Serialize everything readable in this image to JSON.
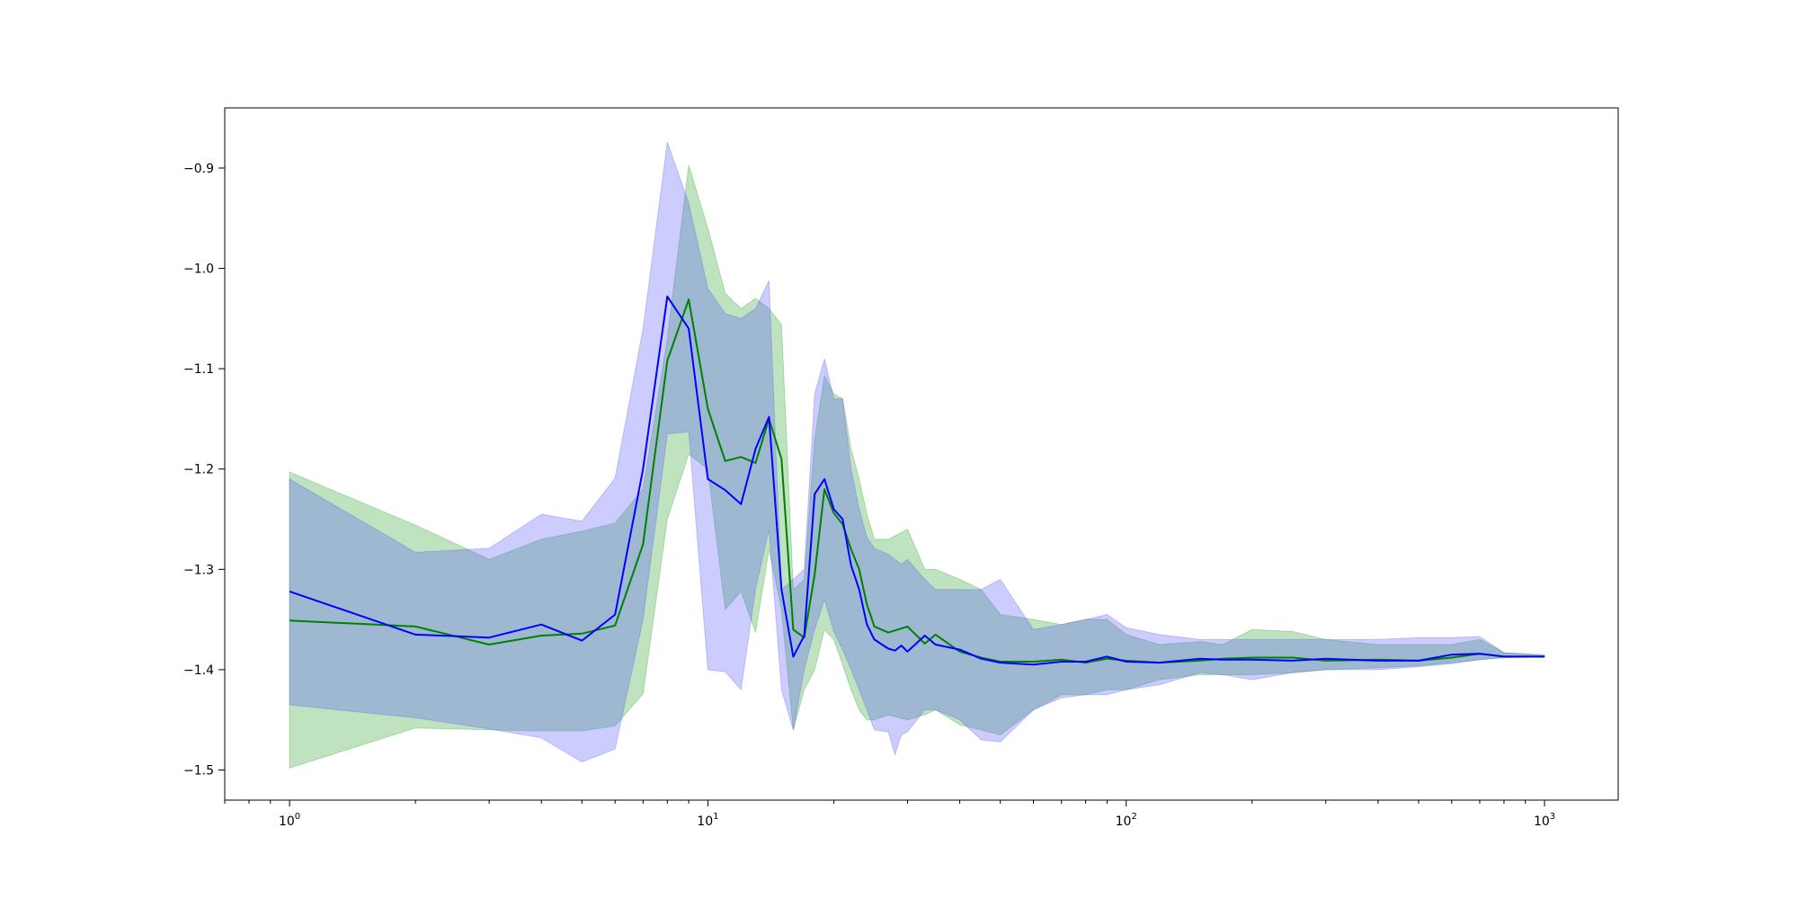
{
  "chart_data": {
    "type": "line",
    "title": "",
    "xlabel": "",
    "ylabel": "",
    "xscale": "log",
    "xlim": [
      0.7,
      1500
    ],
    "ylim": [
      -1.53,
      -0.84
    ],
    "grid": false,
    "legend": "none",
    "x_ticks": [
      {
        "base": "10",
        "exp": "0",
        "value": 1
      },
      {
        "base": "10",
        "exp": "1",
        "value": 10
      },
      {
        "base": "10",
        "exp": "2",
        "value": 100
      },
      {
        "base": "10",
        "exp": "3",
        "value": 1000
      }
    ],
    "y_ticks": [
      {
        "label": "−0.9",
        "value": -0.9
      },
      {
        "label": "−1.0",
        "value": -1.0
      },
      {
        "label": "−1.1",
        "value": -1.1
      },
      {
        "label": "−1.2",
        "value": -1.2
      },
      {
        "label": "−1.3",
        "value": -1.3
      },
      {
        "label": "−1.4",
        "value": -1.4
      },
      {
        "label": "−1.5",
        "value": -1.5
      }
    ],
    "series": [
      {
        "color": "#008000",
        "band_color": "#2ca02c",
        "x": [
          1,
          2,
          3,
          4,
          5,
          6,
          7,
          8,
          9,
          10,
          11,
          12,
          13,
          14,
          15,
          16,
          17,
          18,
          19,
          20,
          21,
          22,
          23,
          24,
          25,
          27,
          30,
          33,
          35,
          40,
          45,
          50,
          60,
          70,
          80,
          90,
          100,
          120,
          150,
          170,
          200,
          250,
          300,
          400,
          500,
          600,
          700,
          800,
          1000
        ],
        "values": [
          -1.351,
          -1.357,
          -1.375,
          -1.366,
          -1.364,
          -1.356,
          -1.275,
          -1.092,
          -1.031,
          -1.14,
          -1.192,
          -1.188,
          -1.194,
          -1.15,
          -1.19,
          -1.36,
          -1.368,
          -1.305,
          -1.22,
          -1.244,
          -1.255,
          -1.28,
          -1.3,
          -1.335,
          -1.357,
          -1.363,
          -1.357,
          -1.374,
          -1.365,
          -1.382,
          -1.388,
          -1.392,
          -1.392,
          -1.39,
          -1.393,
          -1.389,
          -1.391,
          -1.393,
          -1.391,
          -1.389,
          -1.388,
          -1.388,
          -1.391,
          -1.39,
          -1.391,
          -1.388,
          -1.384,
          -1.387,
          -1.387
        ],
        "upper": [
          -1.203,
          -1.256,
          -1.29,
          -1.27,
          -1.262,
          -1.254,
          -1.22,
          -1.07,
          -0.897,
          -0.96,
          -1.025,
          -1.04,
          -1.03,
          -1.04,
          -1.056,
          -1.32,
          -1.31,
          -1.17,
          -1.107,
          -1.125,
          -1.13,
          -1.18,
          -1.21,
          -1.245,
          -1.27,
          -1.27,
          -1.26,
          -1.3,
          -1.3,
          -1.31,
          -1.32,
          -1.345,
          -1.35,
          -1.355,
          -1.35,
          -1.35,
          -1.365,
          -1.375,
          -1.372,
          -1.375,
          -1.36,
          -1.362,
          -1.37,
          -1.375,
          -1.375,
          -1.375,
          -1.37,
          -1.383,
          -1.385
        ],
        "lower": [
          -1.498,
          -1.458,
          -1.46,
          -1.461,
          -1.461,
          -1.456,
          -1.424,
          -1.25,
          -1.185,
          -1.2,
          -1.34,
          -1.322,
          -1.363,
          -1.28,
          -1.34,
          -1.46,
          -1.42,
          -1.4,
          -1.36,
          -1.37,
          -1.395,
          -1.42,
          -1.44,
          -1.45,
          -1.45,
          -1.445,
          -1.45,
          -1.445,
          -1.44,
          -1.455,
          -1.46,
          -1.465,
          -1.44,
          -1.425,
          -1.425,
          -1.42,
          -1.42,
          -1.41,
          -1.405,
          -1.405,
          -1.405,
          -1.403,
          -1.4,
          -1.398,
          -1.396,
          -1.393,
          -1.39,
          -1.388,
          -1.387
        ]
      },
      {
        "color": "#0000ff",
        "band_color": "#5555ff",
        "x": [
          1,
          2,
          3,
          4,
          5,
          6,
          7,
          8,
          9,
          10,
          11,
          12,
          13,
          14,
          15,
          16,
          17,
          18,
          19,
          20,
          21,
          22,
          23,
          24,
          25,
          27,
          28,
          29,
          30,
          33,
          35,
          40,
          45,
          50,
          60,
          70,
          80,
          90,
          100,
          120,
          150,
          170,
          200,
          250,
          300,
          400,
          500,
          600,
          700,
          800,
          1000
        ],
        "values": [
          -1.322,
          -1.365,
          -1.368,
          -1.355,
          -1.371,
          -1.345,
          -1.2,
          -1.028,
          -1.06,
          -1.21,
          -1.221,
          -1.235,
          -1.18,
          -1.148,
          -1.32,
          -1.387,
          -1.366,
          -1.225,
          -1.21,
          -1.24,
          -1.25,
          -1.296,
          -1.32,
          -1.355,
          -1.37,
          -1.379,
          -1.381,
          -1.376,
          -1.382,
          -1.366,
          -1.375,
          -1.38,
          -1.389,
          -1.393,
          -1.395,
          -1.392,
          -1.392,
          -1.387,
          -1.392,
          -1.393,
          -1.389,
          -1.39,
          -1.39,
          -1.391,
          -1.389,
          -1.391,
          -1.391,
          -1.385,
          -1.384,
          -1.387,
          -1.387
        ],
        "upper": [
          -1.21,
          -1.283,
          -1.279,
          -1.245,
          -1.252,
          -1.209,
          -1.06,
          -0.874,
          -0.935,
          -1.02,
          -1.045,
          -1.05,
          -1.04,
          -1.012,
          -1.32,
          -1.31,
          -1.3,
          -1.125,
          -1.09,
          -1.13,
          -1.13,
          -1.2,
          -1.24,
          -1.268,
          -1.279,
          -1.285,
          -1.29,
          -1.295,
          -1.29,
          -1.31,
          -1.32,
          -1.32,
          -1.32,
          -1.31,
          -1.36,
          -1.355,
          -1.35,
          -1.345,
          -1.358,
          -1.365,
          -1.37,
          -1.37,
          -1.37,
          -1.37,
          -1.37,
          -1.37,
          -1.368,
          -1.368,
          -1.367,
          -1.383,
          -1.386
        ],
        "lower": [
          -1.435,
          -1.448,
          -1.459,
          -1.468,
          -1.492,
          -1.479,
          -1.35,
          -1.165,
          -1.163,
          -1.4,
          -1.402,
          -1.42,
          -1.32,
          -1.26,
          -1.42,
          -1.46,
          -1.4,
          -1.36,
          -1.33,
          -1.362,
          -1.38,
          -1.4,
          -1.42,
          -1.44,
          -1.46,
          -1.462,
          -1.485,
          -1.465,
          -1.462,
          -1.44,
          -1.44,
          -1.45,
          -1.47,
          -1.472,
          -1.44,
          -1.428,
          -1.425,
          -1.425,
          -1.42,
          -1.415,
          -1.403,
          -1.405,
          -1.41,
          -1.403,
          -1.4,
          -1.4,
          -1.397,
          -1.394,
          -1.39,
          -1.388,
          -1.387
        ]
      }
    ]
  }
}
